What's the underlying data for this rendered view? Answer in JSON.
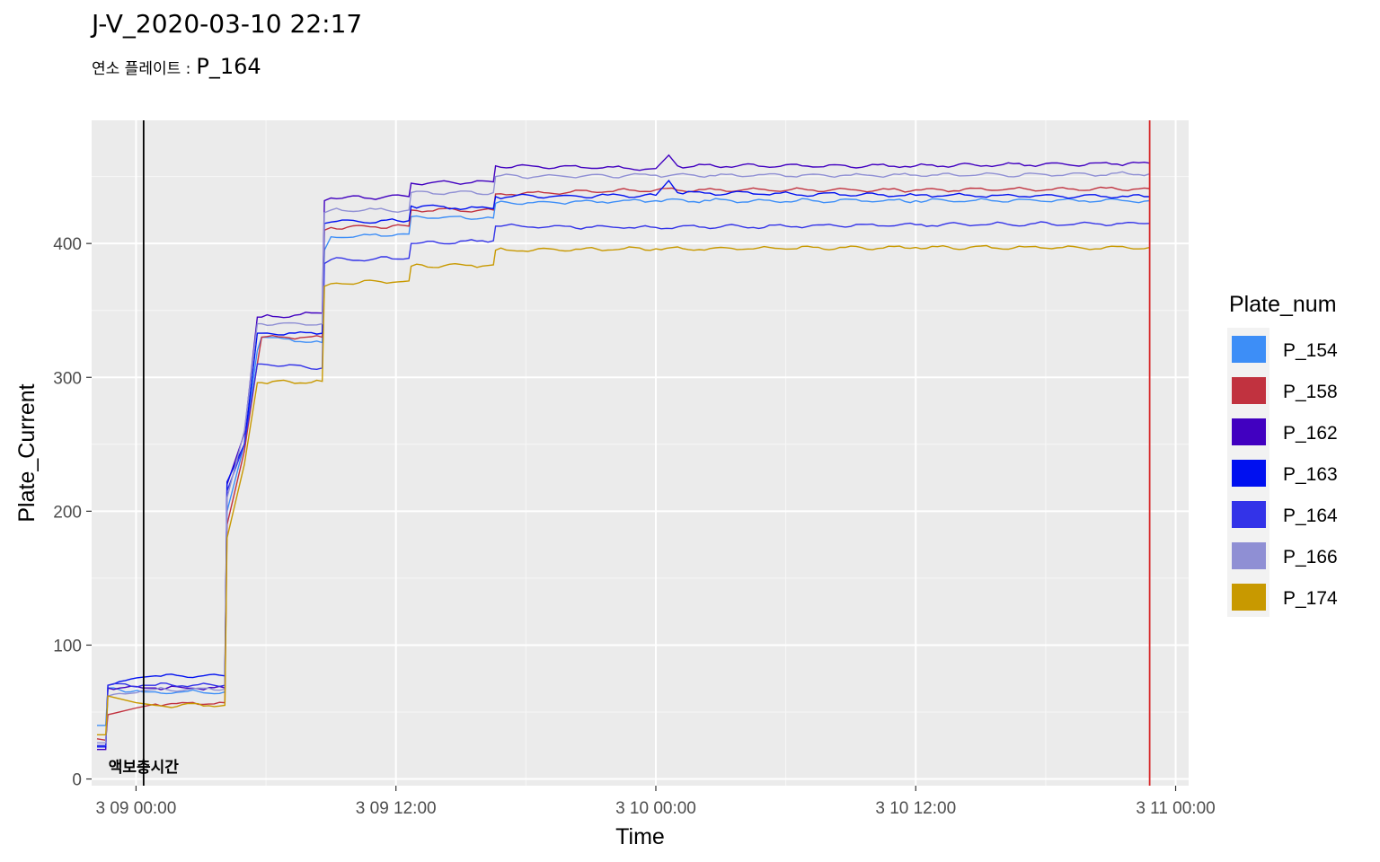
{
  "title": "J-V_2020-03-10 22:17",
  "subtitle": {
    "label": "연소 플레이트 :",
    "plate": "P_164"
  },
  "chart_data": {
    "type": "line",
    "xlabel": "Time",
    "ylabel": "Plate_Current",
    "x_unit": "hours from 3 09 00:00",
    "xlim": [
      -2.05,
      48.6
    ],
    "ylim": [
      -5,
      492
    ],
    "x_ticks": [
      {
        "value": 0,
        "label": "3 09 00:00"
      },
      {
        "value": 12,
        "label": "3 09 12:00"
      },
      {
        "value": 24,
        "label": "3 10 00:00"
      },
      {
        "value": 36,
        "label": "3 10 12:00"
      },
      {
        "value": 48,
        "label": "3 11 00:00"
      }
    ],
    "y_ticks": [
      0,
      100,
      200,
      300,
      400
    ],
    "grid": true,
    "legend": {
      "title": "Plate_num",
      "position": "right"
    },
    "vlines": [
      {
        "x": 0.35,
        "color": "#000000",
        "label": "액보충시간"
      },
      {
        "x": 46.8,
        "color": "#d62728",
        "label": ""
      }
    ],
    "series": [
      {
        "name": "P_154",
        "color": "#3d8ef7",
        "points": [
          [
            -1.8,
            40
          ],
          [
            -1.4,
            40
          ],
          [
            -1.3,
            68
          ],
          [
            0.3,
            65
          ],
          [
            0.9,
            65
          ],
          [
            4.1,
            65
          ],
          [
            4.2,
            200
          ],
          [
            5.0,
            250
          ],
          [
            5.6,
            320
          ],
          [
            5.8,
            330
          ],
          [
            8.6,
            326
          ],
          [
            8.7,
            395
          ],
          [
            9.0,
            405
          ],
          [
            12.6,
            407
          ],
          [
            12.7,
            420
          ],
          [
            16.5,
            419
          ],
          [
            16.6,
            430
          ],
          [
            24,
            432
          ],
          [
            36,
            432
          ],
          [
            46.8,
            432
          ]
        ]
      },
      {
        "name": "P_158",
        "color": "#c1323f",
        "points": [
          [
            -1.8,
            30
          ],
          [
            -1.4,
            29
          ],
          [
            -1.3,
            48
          ],
          [
            0,
            53
          ],
          [
            0.9,
            56
          ],
          [
            4.1,
            57
          ],
          [
            4.2,
            190
          ],
          [
            5.0,
            245
          ],
          [
            5.6,
            310
          ],
          [
            5.8,
            330
          ],
          [
            8.6,
            330
          ],
          [
            8.7,
            410
          ],
          [
            9.0,
            412
          ],
          [
            12.6,
            413
          ],
          [
            12.7,
            425
          ],
          [
            16.5,
            425
          ],
          [
            16.6,
            437
          ],
          [
            24,
            440
          ],
          [
            36,
            440
          ],
          [
            46.8,
            441
          ]
        ]
      },
      {
        "name": "P_162",
        "color": "#4100c0",
        "points": [
          [
            -1.8,
            22
          ],
          [
            -1.4,
            22
          ],
          [
            -1.3,
            68
          ],
          [
            0.3,
            68
          ],
          [
            0.9,
            68
          ],
          [
            4.1,
            68
          ],
          [
            4.2,
            220
          ],
          [
            5.0,
            258
          ],
          [
            5.6,
            345
          ],
          [
            5.8,
            345
          ],
          [
            8.6,
            348
          ],
          [
            8.7,
            432
          ],
          [
            9.0,
            434
          ],
          [
            12.6,
            435
          ],
          [
            12.7,
            445
          ],
          [
            16.5,
            446
          ],
          [
            16.6,
            458
          ],
          [
            24,
            456
          ],
          [
            24.6,
            466
          ],
          [
            25,
            458
          ],
          [
            36,
            458
          ],
          [
            46.8,
            460
          ]
        ]
      },
      {
        "name": "P_163",
        "color": "#0010f0",
        "points": [
          [
            -1.8,
            24
          ],
          [
            -1.4,
            24
          ],
          [
            -1.3,
            70
          ],
          [
            0.3,
            76
          ],
          [
            0.9,
            77
          ],
          [
            4.1,
            77
          ],
          [
            4.2,
            222
          ],
          [
            5.0,
            250
          ],
          [
            5.6,
            333
          ],
          [
            5.8,
            333
          ],
          [
            8.6,
            333
          ],
          [
            8.7,
            415
          ],
          [
            9.0,
            416
          ],
          [
            12.6,
            417
          ],
          [
            12.7,
            428
          ],
          [
            16.5,
            426
          ],
          [
            16.6,
            435
          ],
          [
            24,
            436
          ],
          [
            24.6,
            447
          ],
          [
            25,
            438
          ],
          [
            36,
            436
          ],
          [
            46.8,
            435
          ]
        ]
      },
      {
        "name": "P_164",
        "color": "#3333e8",
        "points": [
          [
            -1.8,
            25
          ],
          [
            -1.4,
            25
          ],
          [
            -1.3,
            70
          ],
          [
            0.3,
            70
          ],
          [
            0.9,
            70
          ],
          [
            4.1,
            70
          ],
          [
            4.2,
            215
          ],
          [
            5.0,
            250
          ],
          [
            5.6,
            310
          ],
          [
            5.8,
            310
          ],
          [
            8.6,
            307
          ],
          [
            8.7,
            385
          ],
          [
            9.0,
            388
          ],
          [
            12.6,
            389
          ],
          [
            12.7,
            400
          ],
          [
            16.5,
            402
          ],
          [
            16.6,
            413
          ],
          [
            24,
            412
          ],
          [
            36,
            414
          ],
          [
            46.8,
            415
          ]
        ]
      },
      {
        "name": "P_166",
        "color": "#8f8fd4",
        "points": [
          [
            -1.8,
            27
          ],
          [
            -1.4,
            27
          ],
          [
            -1.3,
            62
          ],
          [
            0.3,
            66
          ],
          [
            0.9,
            67
          ],
          [
            4.1,
            67
          ],
          [
            4.2,
            210
          ],
          [
            5.0,
            260
          ],
          [
            5.6,
            340
          ],
          [
            5.8,
            340
          ],
          [
            8.6,
            340
          ],
          [
            8.7,
            423
          ],
          [
            9.0,
            425
          ],
          [
            12.6,
            425
          ],
          [
            12.7,
            438
          ],
          [
            16.5,
            438
          ],
          [
            16.6,
            450
          ],
          [
            24,
            451
          ],
          [
            36,
            451
          ],
          [
            46.8,
            452
          ]
        ]
      },
      {
        "name": "P_174",
        "color": "#c89900",
        "points": [
          [
            -1.8,
            33
          ],
          [
            -1.4,
            33
          ],
          [
            -1.3,
            62
          ],
          [
            0,
            57
          ],
          [
            0.9,
            55
          ],
          [
            4.1,
            55
          ],
          [
            4.2,
            180
          ],
          [
            5.0,
            235
          ],
          [
            5.6,
            296
          ],
          [
            5.8,
            296
          ],
          [
            8.6,
            297
          ],
          [
            8.7,
            368
          ],
          [
            9.0,
            370
          ],
          [
            12.6,
            372
          ],
          [
            12.7,
            383
          ],
          [
            16.5,
            384
          ],
          [
            16.6,
            395
          ],
          [
            24,
            396
          ],
          [
            36,
            397
          ],
          [
            46.8,
            397
          ]
        ]
      }
    ]
  }
}
